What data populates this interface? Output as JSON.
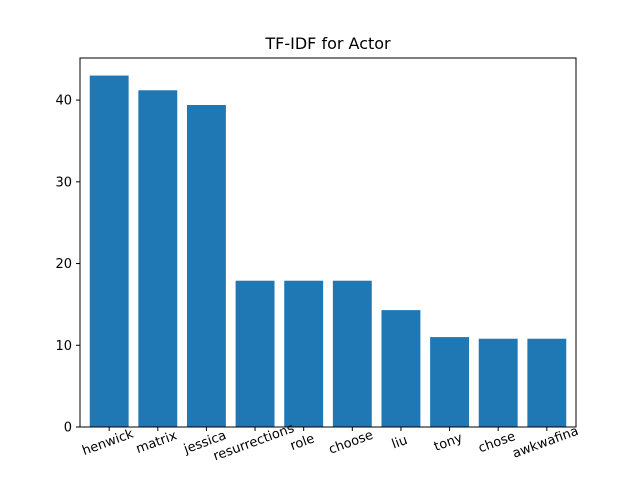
{
  "chart_data": {
    "type": "bar",
    "title": "TF-IDF for Actor",
    "xlabel": "",
    "ylabel": "",
    "categories": [
      "henwick",
      "matrix",
      "jessica",
      "resurrections",
      "role",
      "choose",
      "liu",
      "tony",
      "chose",
      "awkwafina"
    ],
    "values": [
      43.0,
      41.2,
      39.4,
      17.9,
      17.9,
      17.9,
      14.3,
      11.0,
      10.8,
      10.8
    ],
    "ylim": [
      0,
      45.15
    ],
    "yticks": [
      0,
      10,
      20,
      30,
      40
    ],
    "ytick_labels": [
      "0",
      "10",
      "20",
      "30",
      "40"
    ],
    "bar_color": "#1f77b4",
    "grid": false,
    "legend": "none"
  }
}
